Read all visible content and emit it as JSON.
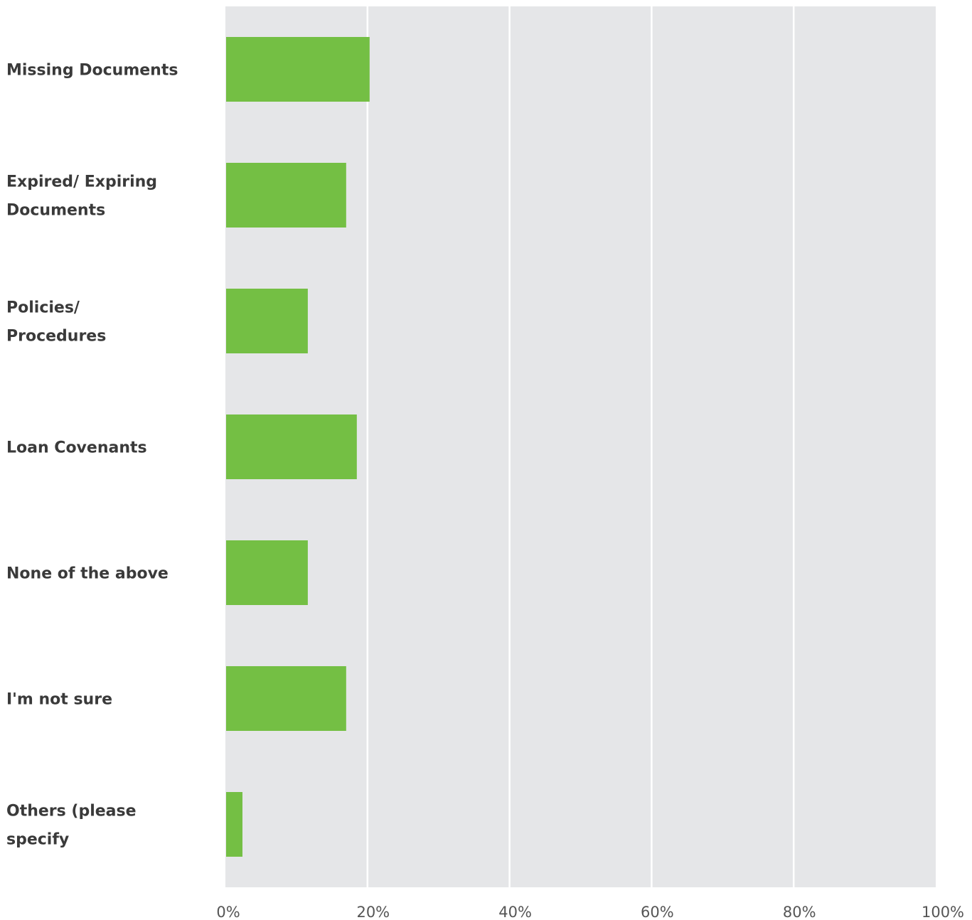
{
  "chart_data": {
    "type": "bar",
    "orientation": "horizontal",
    "categories": [
      [
        "Missing Documents"
      ],
      [
        "Expired/ Expiring",
        "Documents"
      ],
      [
        "Policies/",
        "Procedures"
      ],
      [
        "Loan Covenants"
      ],
      [
        "None of the above"
      ],
      [
        "I'm not sure"
      ],
      [
        "Others (please",
        "specify"
      ]
    ],
    "values": [
      20.2,
      16.9,
      11.5,
      18.4,
      11.5,
      16.9,
      2.3
    ],
    "xlim": [
      0,
      100
    ],
    "x_ticks": [
      0,
      20,
      40,
      60,
      80,
      100
    ],
    "x_tick_labels": [
      "0%",
      "20%",
      "40%",
      "60%",
      "80%",
      "100%"
    ],
    "title": "",
    "xlabel": "",
    "ylabel": "",
    "grid": true,
    "colors": {
      "bar": "#74bf44",
      "plot_bg": "#e5e6e8",
      "grid": "#ffffff"
    }
  }
}
